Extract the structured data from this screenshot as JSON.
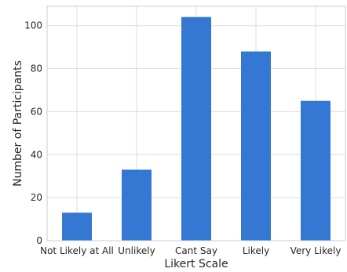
{
  "chart_data": {
    "type": "bar",
    "title": "",
    "xlabel": "Likert Scale",
    "ylabel": "Number of Participants",
    "categories": [
      "Not Likely at All",
      "Unlikely",
      "Cant Say",
      "Likely",
      "Very Likely"
    ],
    "values": [
      13,
      33,
      104,
      88,
      65
    ],
    "ylim": [
      0,
      109
    ],
    "yticks": [
      0,
      20,
      40,
      60,
      80,
      100
    ],
    "grid": true,
    "bar_color": "#3478d4"
  }
}
